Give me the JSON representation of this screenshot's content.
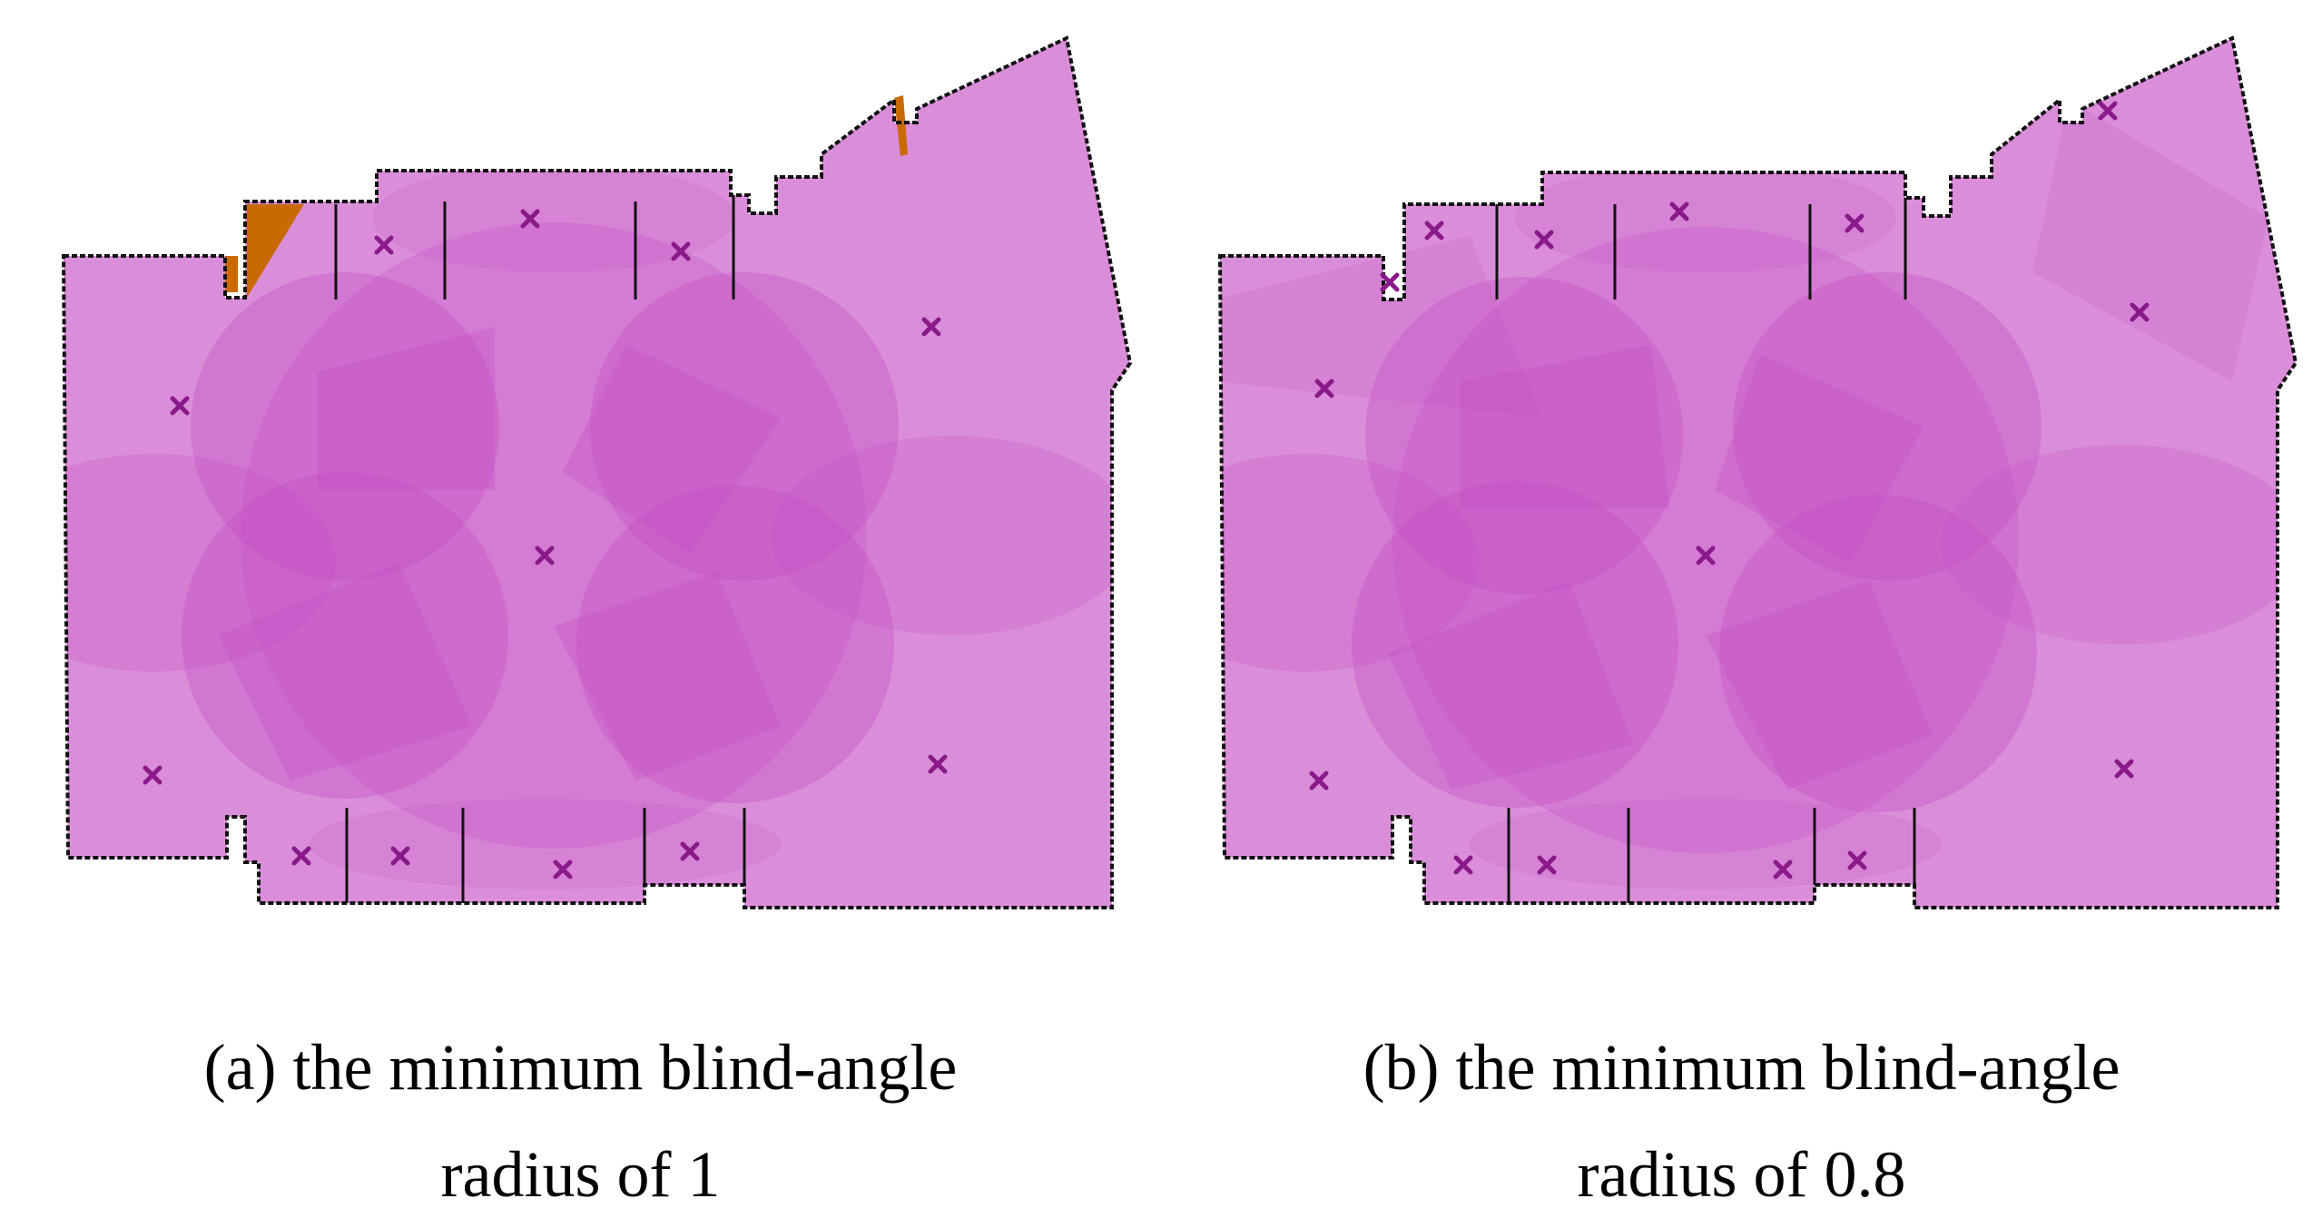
{
  "colors": {
    "coverage_base": "#da8ed9",
    "overlap": "#c44cc4",
    "blind_area": "#c86a00",
    "camera_marker": "#8a1a8a",
    "wall": "#111111",
    "background": "#ffffff"
  },
  "marker_icon": "x-cross-icon",
  "panels": [
    {
      "id": "a",
      "caption_line1": "(a) the minimum blind-angle",
      "caption_line2": "radius of 1",
      "camera_count": 12,
      "has_blind_area": true
    },
    {
      "id": "b",
      "caption_line1": "(b) the minimum blind-angle",
      "caption_line2": "radius of 0.8",
      "camera_count": 16,
      "has_blind_area": false
    }
  ]
}
